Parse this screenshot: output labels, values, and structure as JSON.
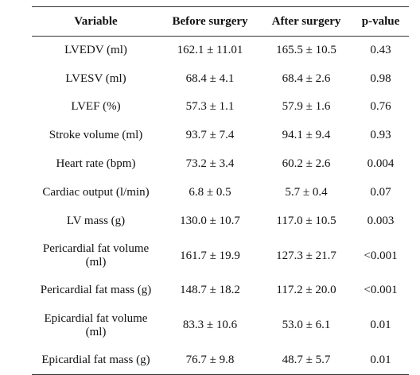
{
  "table": {
    "headers": {
      "variable": "Variable",
      "before": "Before surgery",
      "after": "After surgery",
      "pvalue": "p-value"
    },
    "rows": [
      {
        "variable": "LVEDV (ml)",
        "before": "162.1 ± 11.01",
        "after": "165.5 ± 10.5",
        "pvalue": "0.43"
      },
      {
        "variable": "LVESV (ml)",
        "before": "68.4 ± 4.1",
        "after": "68.4 ± 2.6",
        "pvalue": "0.98"
      },
      {
        "variable": "LVEF (%)",
        "before": "57.3 ± 1.1",
        "after": "57.9 ± 1.6",
        "pvalue": "0.76"
      },
      {
        "variable": "Stroke volume (ml)",
        "before": "93.7 ± 7.4",
        "after": "94.1 ± 9.4",
        "pvalue": "0.93"
      },
      {
        "variable": "Heart rate (bpm)",
        "before": "73.2 ± 3.4",
        "after": "60.2 ± 2.6",
        "pvalue": "0.004"
      },
      {
        "variable": "Cardiac output (l/min)",
        "before": "6.8 ± 0.5",
        "after": "5.7 ± 0.4",
        "pvalue": "0.07"
      },
      {
        "variable": "LV mass (g)",
        "before": "130.0 ± 10.7",
        "after": "117.0 ± 10.5",
        "pvalue": "0.003"
      },
      {
        "variable": "Pericardial fat volume (ml)",
        "before": "161.7 ± 19.9",
        "after": "127.3 ± 21.7",
        "pvalue": "<0.001"
      },
      {
        "variable": "Pericardial fat mass (g)",
        "before": "148.7 ± 18.2",
        "after": "117.2 ± 20.0",
        "pvalue": "<0.001"
      },
      {
        "variable": "Epicardial fat volume (ml)",
        "before": "83.3 ± 10.6",
        "after": "53.0 ± 6.1",
        "pvalue": "0.01"
      },
      {
        "variable": "Epicardial fat mass (g)",
        "before": "76.7 ± 9.8",
        "after": "48.7 ± 5.7",
        "pvalue": "0.01"
      }
    ]
  }
}
